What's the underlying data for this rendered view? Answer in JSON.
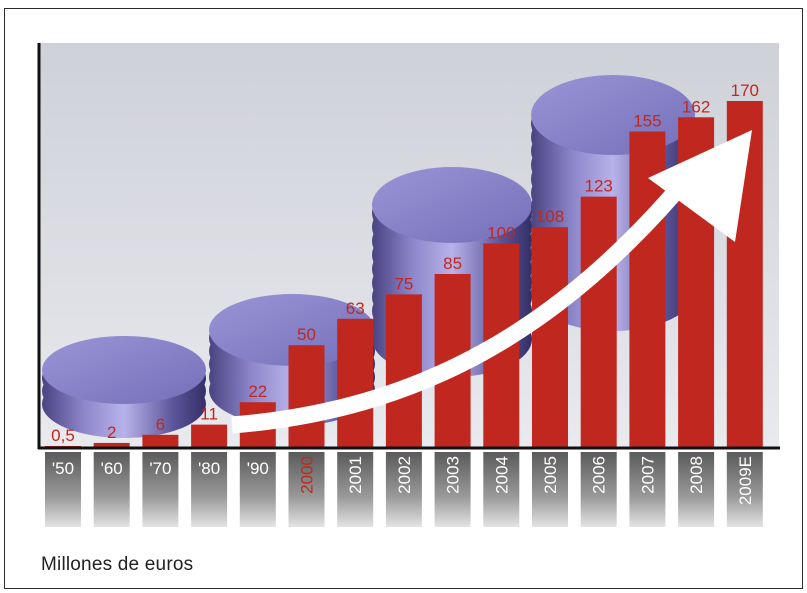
{
  "chart_data": {
    "type": "bar",
    "categories": [
      "'50",
      "'60",
      "'70",
      "'80",
      "'90",
      "2000",
      "2001",
      "2002",
      "2003",
      "2004",
      "2005",
      "2006",
      "2007",
      "2008",
      "2009E"
    ],
    "values": [
      0.5,
      2,
      6,
      11,
      22,
      50,
      63,
      75,
      85,
      100,
      108,
      123,
      155,
      162,
      170
    ],
    "value_labels": [
      "0,5",
      "2",
      "6",
      "11",
      "22",
      "50",
      "63",
      "75",
      "85",
      "100",
      "108",
      "123",
      "155",
      "162",
      "170"
    ],
    "highlight_category": "2000",
    "ylim": [
      0,
      170
    ],
    "grid": false,
    "note": "Millones de euros"
  },
  "colors": {
    "bar": "#c0281f",
    "label": "#c0281f",
    "background": "#d9dbe2",
    "axis": "#111111",
    "tab_text": "#ffffff",
    "tab_text_highlight": "#c0281f",
    "coin": "#7f78c1",
    "arrow": "#ffffff"
  }
}
